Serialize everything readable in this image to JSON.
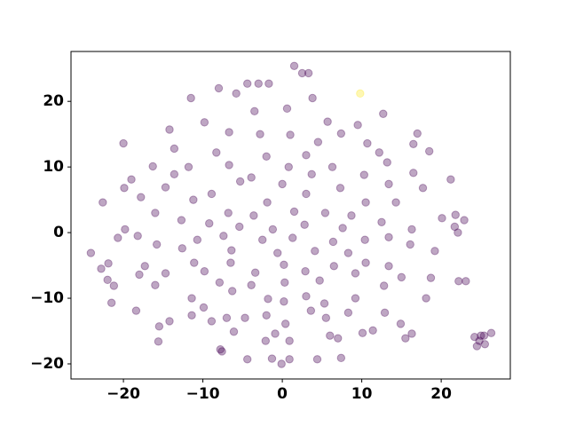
{
  "chart_data": {
    "type": "scatter",
    "xlim": [
      -26.6,
      28.7
    ],
    "ylim": [
      -22.3,
      27.6
    ],
    "xticks": [
      {
        "value": -20,
        "label": "−20"
      },
      {
        "value": -10,
        "label": "−10"
      },
      0,
      10,
      20
    ],
    "yticks": [
      {
        "value": -20,
        "label": "−20"
      },
      {
        "value": -10,
        "label": "−10"
      },
      0,
      10,
      20
    ],
    "alpha": 0.35,
    "series": [
      {
        "color": "#440154",
        "x": [
          1.5,
          2.5,
          3.3,
          -4.4,
          -3,
          -1.7,
          -5.8,
          -11.5,
          -8,
          3.8,
          0.6,
          -3.5,
          12.7,
          5.7,
          9.5,
          -9.8,
          -14.2,
          -6.7,
          -2.8,
          1,
          7.4,
          17,
          -20,
          -13.6,
          4.5,
          10.7,
          16.5,
          18.5,
          -8.3,
          -2,
          3,
          12.2,
          -16.3,
          -11.8,
          -6.7,
          0.8,
          6.3,
          13.2,
          -19,
          -19.9,
          -13.6,
          -3.9,
          3.7,
          10.3,
          16.5,
          21.2,
          -14.7,
          -8.9,
          -5.3,
          0,
          7.3,
          13.4,
          17.7,
          -22.6,
          -17.8,
          -11.2,
          -1.9,
          3,
          10.5,
          14.3,
          -16,
          -12.7,
          -6.8,
          -3.6,
          1.5,
          5.4,
          8.7,
          20.1,
          21.8,
          22.9,
          -19.8,
          -9.2,
          -5.4,
          -1.2,
          2.8,
          7.6,
          12.5,
          16.3,
          21.7,
          22.1,
          -20.7,
          -18.2,
          -10.7,
          -7.4,
          -2.5,
          1.3,
          6.4,
          10.4,
          13.4,
          -24.1,
          -15.8,
          -12.6,
          -6.4,
          -0.6,
          4.1,
          8.3,
          16.1,
          19.2,
          -21.9,
          -17.3,
          -11.1,
          -6.5,
          0.2,
          6.5,
          10.5,
          13.4,
          -22.8,
          -22,
          -18,
          -14.7,
          -9.8,
          -3.4,
          2.9,
          9.2,
          15,
          -21.2,
          -16,
          -7.9,
          -3.9,
          0.3,
          4.7,
          12.8,
          18.7,
          22.2,
          23.1,
          -11.4,
          -6.3,
          -1.8,
          3,
          9.2,
          18.1,
          -21.5,
          -9.9,
          0.2,
          5.3,
          8.3,
          -18.4,
          -11.4,
          -7,
          -2,
          3.6,
          12.9,
          -14.2,
          -8.9,
          -4.7,
          0.4,
          5.5,
          14.9,
          -15.5,
          -6.1,
          -0.9,
          6,
          10.1,
          11.4,
          16.3,
          -15.6,
          -2.1,
          0.9,
          7,
          15.5,
          -7.8,
          -7.6,
          24.2,
          24.8,
          25.4,
          26.3,
          24.5,
          25.5,
          25,
          -4.4,
          -1.3,
          -0.1,
          0.9,
          4.4,
          7.4
        ],
        "values": [
          25.4,
          24.3,
          24.3,
          22.7,
          22.7,
          22.7,
          21.2,
          20.5,
          22,
          20.5,
          18.9,
          18.5,
          18.1,
          16.9,
          16.4,
          16.8,
          15.7,
          15.3,
          15,
          14.9,
          15.1,
          15.1,
          13.6,
          12.8,
          13.8,
          13.6,
          13.5,
          12.4,
          12.2,
          11.6,
          11.8,
          12.2,
          10.1,
          10,
          10.3,
          10,
          10,
          10.7,
          8.1,
          6.8,
          8.9,
          8.4,
          8.9,
          8.8,
          9.1,
          8.1,
          6.9,
          5.9,
          7.8,
          7.4,
          6.8,
          7.4,
          6.8,
          4.6,
          5.4,
          5,
          4.6,
          5.9,
          4.6,
          4.6,
          3,
          1.9,
          3,
          2.6,
          3.2,
          3,
          2.6,
          2.2,
          2.7,
          1.9,
          0.5,
          1.4,
          0.9,
          0.5,
          1.2,
          0.7,
          1.6,
          0.5,
          0.9,
          0,
          -0.8,
          -0.5,
          -1.1,
          -0.5,
          -1.1,
          -0.8,
          -1.4,
          -1.1,
          -0.7,
          -3.1,
          -1.8,
          -2.4,
          -2.7,
          -3.1,
          -2.8,
          -3.1,
          -1.8,
          -2.8,
          -4.7,
          -5.1,
          -4.6,
          -4.6,
          -4.9,
          -5.1,
          -4.6,
          -5.1,
          -5.5,
          -7.2,
          -6.4,
          -6.2,
          -5.9,
          -6.1,
          -5.9,
          -6.2,
          -6.8,
          -8.1,
          -8,
          -7.6,
          -8,
          -7.6,
          -7.3,
          -8.1,
          -6.9,
          -7.4,
          -7.4,
          -10,
          -8.9,
          -10.1,
          -9.7,
          -10,
          -10,
          -10.7,
          -11.4,
          -10.5,
          -10.8,
          -12.2,
          -11.9,
          -12.6,
          -13,
          -12.6,
          -11.9,
          -12.2,
          -13.5,
          -13.5,
          -13,
          -13.9,
          -13,
          -13.9,
          -14.3,
          -15.1,
          -15.4,
          -15.7,
          -15.3,
          -14.9,
          -15.4,
          -16.6,
          -16.5,
          -16.5,
          -16.1,
          -16.1,
          -17.8,
          -18.1,
          -15.9,
          -16.5,
          -15.7,
          -15.3,
          -17.3,
          -17,
          -15.7,
          -19.3,
          -19.2,
          -20,
          -19.3,
          -19.3,
          -19.1
        ]
      },
      {
        "color": "#fde725",
        "x": [
          9.8
        ],
        "values": [
          21.2
        ]
      }
    ]
  }
}
